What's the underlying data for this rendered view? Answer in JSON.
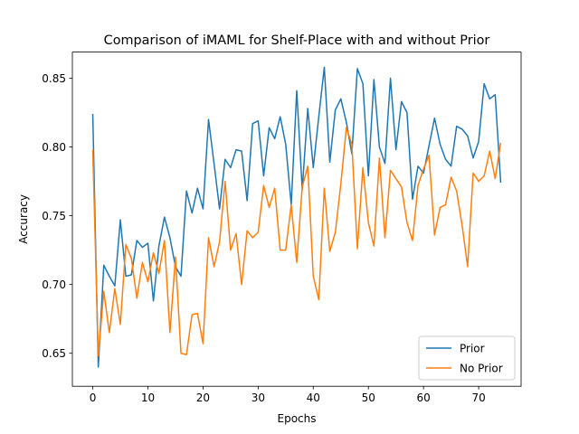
{
  "chart_data": {
    "type": "line",
    "title": "Comparison of iMAML for Shelf-Place with and without Prior",
    "xlabel": "Epochs",
    "ylabel": "Accuracy",
    "xlim": [
      -3.7,
      77.7
    ],
    "ylim": [
      0.626,
      0.869
    ],
    "xticks": [
      0,
      10,
      20,
      30,
      40,
      50,
      60,
      70
    ],
    "yticks": [
      0.65,
      0.7,
      0.75,
      0.8,
      0.85
    ],
    "ytick_labels": [
      "0.65",
      "0.70",
      "0.75",
      "0.80",
      "0.85"
    ],
    "grid": false,
    "legend_position": "lower-right",
    "series": [
      {
        "name": "Prior",
        "color": "#1f77b4",
        "x": [
          0,
          1,
          2,
          3,
          4,
          5,
          6,
          7,
          8,
          9,
          10,
          11,
          12,
          13,
          14,
          15,
          16,
          17,
          18,
          19,
          20,
          21,
          22,
          23,
          24,
          25,
          26,
          27,
          28,
          29,
          30,
          31,
          32,
          33,
          34,
          35,
          36,
          37,
          38,
          39,
          40,
          41,
          42,
          43,
          44,
          45,
          46,
          47,
          48,
          49,
          50,
          51,
          52,
          53,
          54,
          55,
          56,
          57,
          58,
          59,
          60,
          61,
          62,
          63,
          64,
          65,
          66,
          67,
          68,
          69,
          70,
          71,
          72,
          73,
          74
        ],
        "values": [
          0.824,
          0.64,
          0.714,
          0.706,
          0.699,
          0.747,
          0.706,
          0.707,
          0.732,
          0.727,
          0.73,
          0.688,
          0.728,
          0.749,
          0.734,
          0.713,
          0.706,
          0.768,
          0.752,
          0.77,
          0.755,
          0.82,
          0.788,
          0.755,
          0.791,
          0.785,
          0.798,
          0.797,
          0.761,
          0.817,
          0.819,
          0.779,
          0.814,
          0.806,
          0.822,
          0.802,
          0.758,
          0.841,
          0.769,
          0.828,
          0.785,
          0.822,
          0.858,
          0.789,
          0.827,
          0.835,
          0.818,
          0.795,
          0.857,
          0.846,
          0.779,
          0.849,
          0.8,
          0.788,
          0.85,
          0.798,
          0.833,
          0.825,
          0.762,
          0.786,
          0.781,
          0.801,
          0.821,
          0.802,
          0.791,
          0.786,
          0.815,
          0.813,
          0.808,
          0.792,
          0.804,
          0.846,
          0.835,
          0.838,
          0.774
        ]
      },
      {
        "name": "No Prior",
        "color": "#ff7f0e",
        "x": [
          0,
          1,
          2,
          3,
          4,
          5,
          6,
          7,
          8,
          9,
          10,
          11,
          12,
          13,
          14,
          15,
          16,
          17,
          18,
          19,
          20,
          21,
          22,
          23,
          24,
          25,
          26,
          27,
          28,
          29,
          30,
          31,
          32,
          33,
          34,
          35,
          36,
          37,
          38,
          39,
          40,
          41,
          42,
          43,
          44,
          45,
          46,
          47,
          48,
          49,
          50,
          51,
          52,
          53,
          54,
          55,
          56,
          57,
          58,
          59,
          60,
          61,
          62,
          63,
          64,
          65,
          66,
          67,
          68,
          69,
          70,
          71,
          72,
          73,
          74
        ],
        "values": [
          0.798,
          0.648,
          0.695,
          0.665,
          0.697,
          0.671,
          0.729,
          0.719,
          0.69,
          0.716,
          0.702,
          0.723,
          0.708,
          0.732,
          0.665,
          0.72,
          0.65,
          0.649,
          0.678,
          0.679,
          0.657,
          0.734,
          0.713,
          0.731,
          0.775,
          0.725,
          0.737,
          0.7,
          0.739,
          0.734,
          0.738,
          0.772,
          0.756,
          0.77,
          0.725,
          0.725,
          0.758,
          0.716,
          0.771,
          0.786,
          0.706,
          0.689,
          0.77,
          0.724,
          0.738,
          0.773,
          0.814,
          0.802,
          0.726,
          0.785,
          0.745,
          0.728,
          0.792,
          0.734,
          0.783,
          0.777,
          0.771,
          0.745,
          0.732,
          0.772,
          0.784,
          0.794,
          0.736,
          0.756,
          0.758,
          0.778,
          0.768,
          0.743,
          0.713,
          0.781,
          0.775,
          0.779,
          0.797,
          0.777,
          0.803
        ]
      }
    ]
  }
}
